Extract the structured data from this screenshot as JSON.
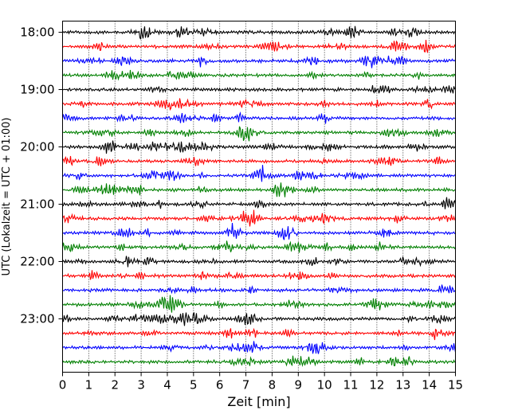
{
  "chart_data": {
    "type": "line",
    "title": "",
    "xlabel": "Zeit  [min]",
    "ylabel": "UTC (Lokalzeit = UTC + 01:00)",
    "xlim": [
      0,
      15
    ],
    "x_ticks": [
      "0",
      "1",
      "2",
      "3",
      "4",
      "5",
      "6",
      "7",
      "8",
      "9",
      "10",
      "11",
      "12",
      "13",
      "14",
      "15"
    ],
    "y_tick_labels": [
      "18:00",
      "19:00",
      "20:00",
      "21:00",
      "22:00",
      "23:00"
    ],
    "grid": "vertical dotted",
    "trace_interval_minutes": 15,
    "trace_start": "18:00",
    "trace_count": 24,
    "trace_colors": [
      "#000000",
      "#ff0000",
      "#0000ff",
      "#008000"
    ]
  }
}
